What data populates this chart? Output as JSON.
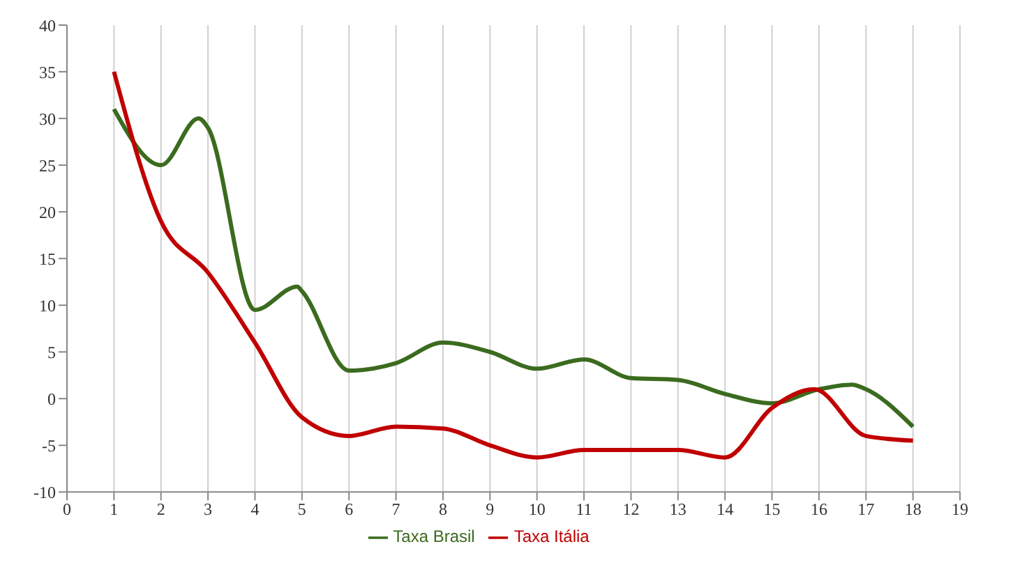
{
  "chart_data": {
    "type": "line",
    "x": [
      1,
      2,
      2.8,
      3,
      4,
      4.9,
      5,
      6,
      7,
      8,
      9,
      10,
      11,
      12,
      13,
      14,
      15,
      16,
      16.7,
      17,
      18
    ],
    "series": [
      {
        "name": "Taxa Brasil",
        "color": "#3b6b1f",
        "values": [
          31,
          25,
          30,
          29,
          9.5,
          12,
          11.5,
          3,
          3.8,
          6,
          5,
          3.2,
          4.2,
          2.2,
          2,
          0.5,
          -0.5,
          1,
          1.5,
          1,
          -3
        ]
      },
      {
        "name": "Taxa Itália",
        "color": "#c00000",
        "x": [
          1,
          2,
          3,
          4,
          5,
          6,
          7,
          8,
          9,
          10,
          11,
          12,
          13,
          14,
          15,
          15.9,
          17,
          18
        ],
        "values": [
          35,
          19,
          13.5,
          6,
          -2,
          -4,
          -3,
          -3.2,
          -5,
          -6.3,
          -5.5,
          -5.5,
          -5.5,
          -6.3,
          -1,
          1,
          -4,
          -4.5
        ]
      }
    ],
    "xlim": [
      0,
      19
    ],
    "xticks": [
      0,
      1,
      2,
      3,
      4,
      5,
      6,
      7,
      8,
      9,
      10,
      11,
      12,
      13,
      14,
      15,
      16,
      17,
      18,
      19
    ],
    "ylim": [
      -10,
      40
    ],
    "yticks": [
      -10,
      -5,
      0,
      5,
      10,
      15,
      20,
      25,
      30,
      35,
      40
    ],
    "grid": "x",
    "legend": "bottom",
    "marker": "none"
  }
}
